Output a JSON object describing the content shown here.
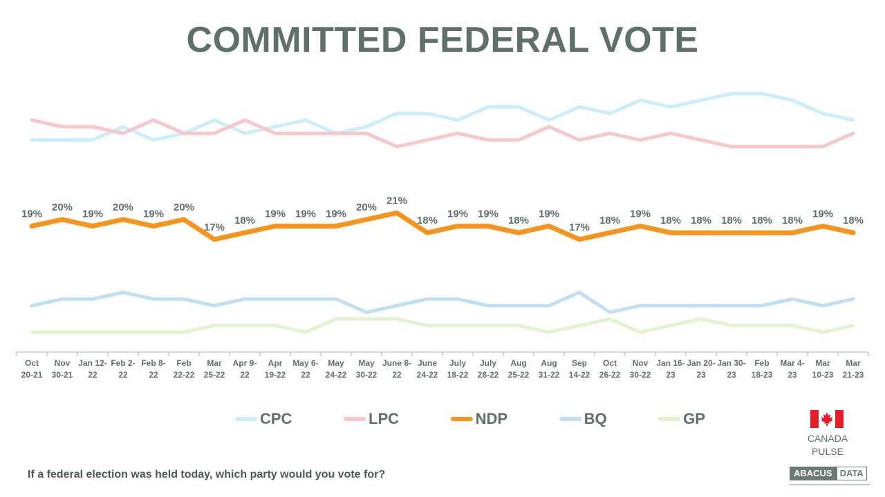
{
  "title": "COMMITTED FEDERAL VOTE",
  "question": "If a federal election was held today, which party would you vote for?",
  "brand": {
    "country_line1": "CANADA",
    "country_line2": "PULSE",
    "logo_part1": "ABACUS",
    "logo_part2": "DATA",
    "flag_icon": "canada-flag-icon"
  },
  "chart_data": {
    "type": "line",
    "categories": [
      [
        "Oct",
        "20-21"
      ],
      [
        "Nov",
        "30-21"
      ],
      [
        "Jan 12-",
        "22"
      ],
      [
        "Feb 2-",
        "22"
      ],
      [
        "Feb 8-",
        "22"
      ],
      [
        "Feb",
        "22-22"
      ],
      [
        "Mar",
        "25-22"
      ],
      [
        "Apr 9-",
        "22"
      ],
      [
        "Apr",
        "19-22"
      ],
      [
        "May 6-",
        "22"
      ],
      [
        "May",
        "24-22"
      ],
      [
        "May",
        "30-22"
      ],
      [
        "June 8-",
        "22"
      ],
      [
        "June",
        "24-22"
      ],
      [
        "July",
        "18-22"
      ],
      [
        "July",
        "28-22"
      ],
      [
        "Aug",
        "25-22"
      ],
      [
        "Aug",
        "31-22"
      ],
      [
        "Sep",
        "14-22"
      ],
      [
        "Oct",
        "26-22"
      ],
      [
        "Nov",
        "30-22"
      ],
      [
        "Jan 16-",
        "23"
      ],
      [
        "Jan 20-",
        "23"
      ],
      [
        "Jan 30-",
        "23"
      ],
      [
        "Feb",
        "18-23"
      ],
      [
        "Mar 4-",
        "23"
      ],
      [
        "Mar",
        "10-23"
      ],
      [
        "Mar",
        "21-23"
      ]
    ],
    "ylim": [
      0,
      40
    ],
    "grid": false,
    "legend_position": "bottom",
    "series": [
      {
        "name": "CPC",
        "color": "#cdeef8",
        "width": 5,
        "values": [
          32,
          32,
          32,
          34,
          32,
          33,
          35,
          33,
          34,
          35,
          33,
          34,
          36,
          36,
          35,
          37,
          37,
          35,
          37,
          36,
          38,
          37,
          38,
          39,
          39,
          38,
          36,
          35
        ]
      },
      {
        "name": "LPC",
        "color": "#f6c7cc",
        "width": 5,
        "values": [
          35,
          34,
          34,
          33,
          35,
          33,
          33,
          35,
          33,
          33,
          33,
          33,
          31,
          32,
          33,
          32,
          32,
          34,
          32,
          33,
          32,
          33,
          32,
          31,
          31,
          31,
          31,
          33
        ]
      },
      {
        "name": "NDP",
        "color": "#f7941d",
        "width": 7,
        "values": [
          19,
          20,
          19,
          20,
          19,
          20,
          17,
          18,
          19,
          19,
          19,
          20,
          21,
          18,
          19,
          19,
          18,
          19,
          17,
          18,
          19,
          18,
          18,
          18,
          18,
          18,
          19,
          18
        ],
        "labels": [
          "19%",
          "20%",
          "19%",
          "20%",
          "19%",
          "20%",
          "17%",
          "18%",
          "19%",
          "19%",
          "19%",
          "20%",
          "21%",
          "18%",
          "19%",
          "19%",
          "18%",
          "19%",
          "17%",
          "18%",
          "19%",
          "18%",
          "18%",
          "18%",
          "18%",
          "18%",
          "19%",
          "18%"
        ]
      },
      {
        "name": "BQ",
        "color": "#c2def2",
        "width": 5,
        "values": [
          7,
          8,
          8,
          9,
          8,
          8,
          7,
          8,
          8,
          8,
          8,
          6,
          7,
          8,
          8,
          7,
          7,
          7,
          9,
          6,
          7,
          7,
          7,
          7,
          7,
          8,
          7,
          8
        ]
      },
      {
        "name": "GP",
        "color": "#e3f2cf",
        "width": 5,
        "values": [
          3,
          3,
          3,
          3,
          3,
          3,
          4,
          4,
          4,
          3,
          5,
          5,
          5,
          4,
          4,
          4,
          4,
          3,
          4,
          5,
          3,
          4,
          5,
          4,
          4,
          4,
          3,
          4
        ]
      }
    ]
  }
}
